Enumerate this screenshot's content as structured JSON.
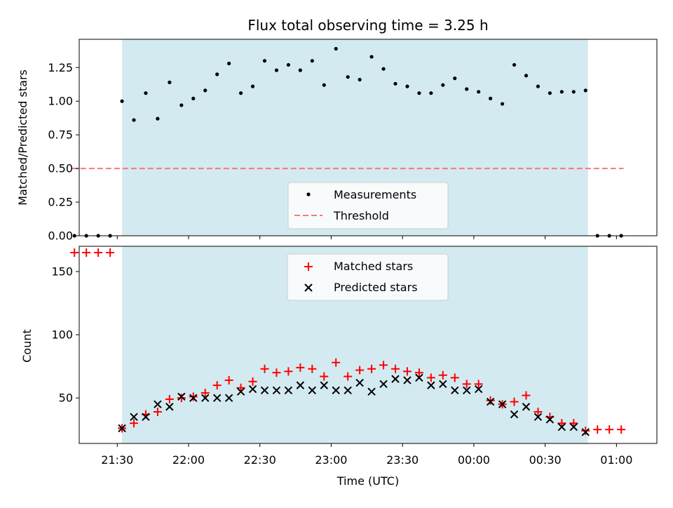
{
  "chart_data": [
    {
      "type": "scatter",
      "title": "Flux total observing time = 3.25 h",
      "xlabel": "",
      "ylabel": "Matched/Predicted stars",
      "xlim_minutes_since_midnight_utc": [
        1274,
        1517
      ],
      "ylim": [
        0,
        1.46
      ],
      "yticks": [
        0.0,
        0.25,
        0.5,
        0.75,
        1.0,
        1.25
      ],
      "ytick_labels": [
        "0.00",
        "0.25",
        "0.50",
        "0.75",
        "1.00",
        "1.25"
      ],
      "x_time_format": "HH:MM UTC",
      "observing_window": {
        "start": "21:32",
        "end": "00:48",
        "color": "#d4eaf1"
      },
      "threshold": {
        "name": "Threshold",
        "value": 0.5,
        "x_start": "21:11",
        "x_end": "01:03",
        "color": "#f27b7b",
        "style": "dashed"
      },
      "series": [
        {
          "name": "Measurements",
          "color": "#000000",
          "marker": "dot",
          "x": [
            "21:12",
            "21:17",
            "21:22",
            "21:27",
            "21:32",
            "21:37",
            "21:42",
            "21:47",
            "21:52",
            "21:57",
            "22:02",
            "22:07",
            "22:12",
            "22:17",
            "22:22",
            "22:27",
            "22:32",
            "22:37",
            "22:42",
            "22:47",
            "22:52",
            "22:57",
            "23:02",
            "23:07",
            "23:12",
            "23:17",
            "23:22",
            "23:27",
            "23:32",
            "23:37",
            "23:42",
            "23:47",
            "23:52",
            "23:57",
            "00:02",
            "00:07",
            "00:12",
            "00:17",
            "00:22",
            "00:27",
            "00:32",
            "00:37",
            "00:42",
            "00:47",
            "00:52",
            "00:57",
            "01:02"
          ],
          "y": [
            0.0,
            0.0,
            0.0,
            0.0,
            1.0,
            0.86,
            1.06,
            0.87,
            1.14,
            0.97,
            1.02,
            1.08,
            1.2,
            1.28,
            1.06,
            1.11,
            1.3,
            1.23,
            1.27,
            1.23,
            1.3,
            1.12,
            1.39,
            1.18,
            1.16,
            1.33,
            1.24,
            1.13,
            1.11,
            1.06,
            1.06,
            1.12,
            1.17,
            1.09,
            1.07,
            1.02,
            0.98,
            1.27,
            1.19,
            1.11,
            1.06,
            1.07,
            1.07,
            1.08,
            0.0,
            0.0,
            0.0
          ]
        }
      ],
      "legend": {
        "placement": "lower-center",
        "entries": [
          "Measurements",
          "Threshold"
        ]
      }
    },
    {
      "type": "scatter",
      "title": "",
      "xlabel": "Time (UTC)",
      "ylabel": "Count",
      "xlim_minutes_since_midnight_utc": [
        1274,
        1517
      ],
      "ylim": [
        14,
        170
      ],
      "yticks": [
        50,
        100,
        150
      ],
      "ytick_labels": [
        "50",
        "100",
        "150"
      ],
      "xticks": [
        "21:30",
        "22:00",
        "22:30",
        "23:00",
        "23:30",
        "00:00",
        "00:30",
        "01:00"
      ],
      "observing_window": {
        "start": "21:32",
        "end": "00:48",
        "color": "#d4eaf1"
      },
      "series": [
        {
          "name": "Matched stars",
          "color": "#ff0000",
          "marker": "plus",
          "x": [
            "21:12",
            "21:17",
            "21:22",
            "21:27",
            "21:32",
            "21:37",
            "21:42",
            "21:47",
            "21:52",
            "21:57",
            "22:02",
            "22:07",
            "22:12",
            "22:17",
            "22:22",
            "22:27",
            "22:32",
            "22:37",
            "22:42",
            "22:47",
            "22:52",
            "22:57",
            "23:02",
            "23:07",
            "23:12",
            "23:17",
            "23:22",
            "23:27",
            "23:32",
            "23:37",
            "23:42",
            "23:47",
            "23:52",
            "23:57",
            "00:02",
            "00:07",
            "00:12",
            "00:17",
            "00:22",
            "00:27",
            "00:32",
            "00:37",
            "00:42",
            "00:47",
            "00:52",
            "00:57",
            "01:02"
          ],
          "y": [
            165,
            165,
            165,
            165,
            26,
            30,
            37,
            39,
            49,
            50,
            51,
            54,
            60,
            64,
            58,
            63,
            73,
            70,
            71,
            74,
            73,
            67,
            78,
            67,
            72,
            73,
            76,
            73,
            71,
            70,
            66,
            68,
            66,
            61,
            61,
            48,
            45,
            47,
            52,
            39,
            35,
            30,
            30,
            24,
            25,
            25,
            25
          ]
        },
        {
          "name": "Predicted stars",
          "color": "#000000",
          "marker": "x",
          "x": [
            "21:32",
            "21:37",
            "21:42",
            "21:47",
            "21:52",
            "21:57",
            "22:02",
            "22:07",
            "22:12",
            "22:17",
            "22:22",
            "22:27",
            "22:32",
            "22:37",
            "22:42",
            "22:47",
            "22:52",
            "22:57",
            "23:02",
            "23:07",
            "23:12",
            "23:17",
            "23:22",
            "23:27",
            "23:32",
            "23:37",
            "23:42",
            "23:47",
            "23:52",
            "23:57",
            "00:02",
            "00:07",
            "00:12",
            "00:17",
            "00:22",
            "00:27",
            "00:32",
            "00:37",
            "00:42",
            "00:47"
          ],
          "y": [
            26,
            35,
            35,
            45,
            43,
            51,
            50,
            50,
            50,
            50,
            55,
            57,
            56,
            56,
            56,
            60,
            56,
            60,
            56,
            56,
            62,
            55,
            61,
            65,
            64,
            66,
            60,
            61,
            56,
            56,
            57,
            47,
            45,
            37,
            43,
            35,
            33,
            27,
            27,
            23
          ]
        }
      ],
      "legend": {
        "placement": "upper-center",
        "entries": [
          "Matched stars",
          "Predicted stars"
        ]
      }
    }
  ]
}
